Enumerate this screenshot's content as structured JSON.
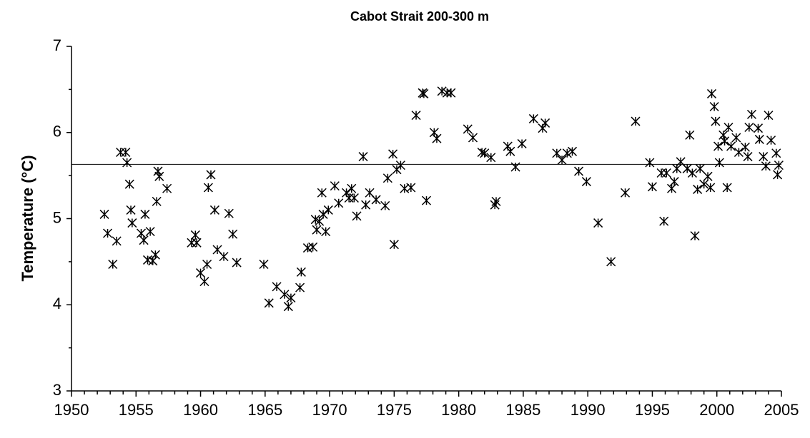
{
  "chart_data": {
    "type": "line",
    "title": "Cabot Strait 200-300 m",
    "ylabel": "Temperature (°C)",
    "color": "#000000",
    "x": [
      1952.55,
      1952.8,
      1953.2,
      1953.5,
      1953.8,
      1954.2,
      1954.3,
      1954.5,
      1954.6,
      1954.7,
      1955.4,
      1955.6,
      1955.7,
      1955.9,
      1956.1,
      1956.3,
      1956.5,
      1956.6,
      1956.7,
      1956.8,
      1957.4,
      1959.3,
      1959.6,
      1959.7,
      1960.0,
      1960.3,
      1960.5,
      1960.6,
      1960.8,
      1961.1,
      1961.3,
      1961.8,
      1962.2,
      1962.5,
      1962.8,
      1964.9,
      1965.3,
      1965.9,
      1966.5,
      1966.8,
      1967.0,
      1967.7,
      1967.8,
      1968.3,
      1968.7,
      1968.9,
      1969.0,
      1969.2,
      1969.4,
      1969.5,
      1969.7,
      1969.9,
      1970.4,
      1970.7,
      1971.3,
      1971.5,
      1971.7,
      1971.9,
      1972.1,
      1972.6,
      1972.8,
      1973.1,
      1973.6,
      1974.3,
      1974.5,
      1974.9,
      1975.0,
      1975.2,
      1975.5,
      1975.8,
      1976.3,
      1976.7,
      1977.2,
      1977.3,
      1977.5,
      1978.1,
      1978.3,
      1978.7,
      1979.1,
      1979.4,
      1980.7,
      1981.1,
      1981.8,
      1982.0,
      1982.5,
      1982.8,
      1982.9,
      1983.8,
      1984.0,
      1984.4,
      1984.9,
      1985.8,
      1986.5,
      1986.7,
      1987.6,
      1988.0,
      1988.4,
      1988.8,
      1989.3,
      1989.9,
      1990.8,
      1991.8,
      1992.9,
      1993.7,
      1994.8,
      1995.0,
      1995.7,
      1995.9,
      1996.1,
      1996.5,
      1996.7,
      1996.9,
      1997.2,
      1997.7,
      1997.9,
      1998.1,
      1998.3,
      1998.5,
      1998.7,
      1999.0,
      1999.3,
      1999.5,
      1999.6,
      1999.8,
      1999.9,
      2000.1,
      2000.2,
      2000.5,
      2000.6,
      2000.8,
      2000.9,
      2001.1,
      2001.5,
      2001.7,
      2002.2,
      2002.4,
      2002.5,
      2002.7,
      2003.2,
      2003.3,
      2003.6,
      2003.8,
      2004.0,
      2004.2,
      2004.6,
      2004.7,
      2004.8
    ],
    "values": [
      5.05,
      4.83,
      4.47,
      4.74,
      5.77,
      5.77,
      5.65,
      5.4,
      5.1,
      4.95,
      4.83,
      4.75,
      5.05,
      4.52,
      4.85,
      4.51,
      4.58,
      5.2,
      5.55,
      5.49,
      5.35,
      4.72,
      4.81,
      4.72,
      4.37,
      4.27,
      4.47,
      5.36,
      5.51,
      5.1,
      4.64,
      4.56,
      5.06,
      4.82,
      4.49,
      4.47,
      4.02,
      4.21,
      4.12,
      3.98,
      4.08,
      4.2,
      4.38,
      4.66,
      4.67,
      4.99,
      4.87,
      4.97,
      5.3,
      5.05,
      4.85,
      5.1,
      5.38,
      5.18,
      5.3,
      5.24,
      5.35,
      5.24,
      5.03,
      5.72,
      5.16,
      5.3,
      5.22,
      5.15,
      5.47,
      5.75,
      4.7,
      5.57,
      5.62,
      5.35,
      5.36,
      6.2,
      6.46,
      6.45,
      5.21,
      6.0,
      5.93,
      6.48,
      6.46,
      6.46,
      6.04,
      5.94,
      5.77,
      5.76,
      5.71,
      5.16,
      5.2,
      5.84,
      5.78,
      5.6,
      5.87,
      6.16,
      6.05,
      6.11,
      5.76,
      5.68,
      5.76,
      5.78,
      5.55,
      5.43,
      4.95,
      4.5,
      5.3,
      6.13,
      5.65,
      5.37,
      5.53,
      4.97,
      5.53,
      5.35,
      5.43,
      5.58,
      5.66,
      5.58,
      5.97,
      5.53,
      4.8,
      5.34,
      5.58,
      5.4,
      5.49,
      5.36,
      6.45,
      6.3,
      6.13,
      5.84,
      5.65,
      5.97,
      5.9,
      5.36,
      6.06,
      5.84,
      5.94,
      5.77,
      5.83,
      5.72,
      6.06,
      6.21,
      6.05,
      5.92,
      5.72,
      5.61,
      6.2,
      5.91,
      5.76,
      5.51,
      5.62
    ],
    "hline": 5.63,
    "xlim": [
      1950,
      2005
    ],
    "xticks": [
      1950,
      1955,
      1960,
      1965,
      1970,
      1975,
      1980,
      1985,
      1990,
      1995,
      2000,
      2005
    ],
    "xminorticks": [
      1951,
      1952,
      1953,
      1954,
      1956,
      1957,
      1958,
      1959,
      1961,
      1962,
      1963,
      1964,
      1966,
      1967,
      1968,
      1969,
      1971,
      1972,
      1973,
      1974,
      1976,
      1977,
      1978,
      1979,
      1981,
      1982,
      1983,
      1984,
      1986,
      1987,
      1988,
      1989,
      1991,
      1992,
      1993,
      1994,
      1996,
      1997,
      1998,
      1999,
      2001,
      2002,
      2003,
      2004
    ],
    "ylim": [
      3,
      7
    ],
    "yticks": [
      3,
      4,
      5,
      6,
      7
    ],
    "yminorticks": [
      3.5,
      4.5,
      5.5,
      6.5
    ]
  }
}
